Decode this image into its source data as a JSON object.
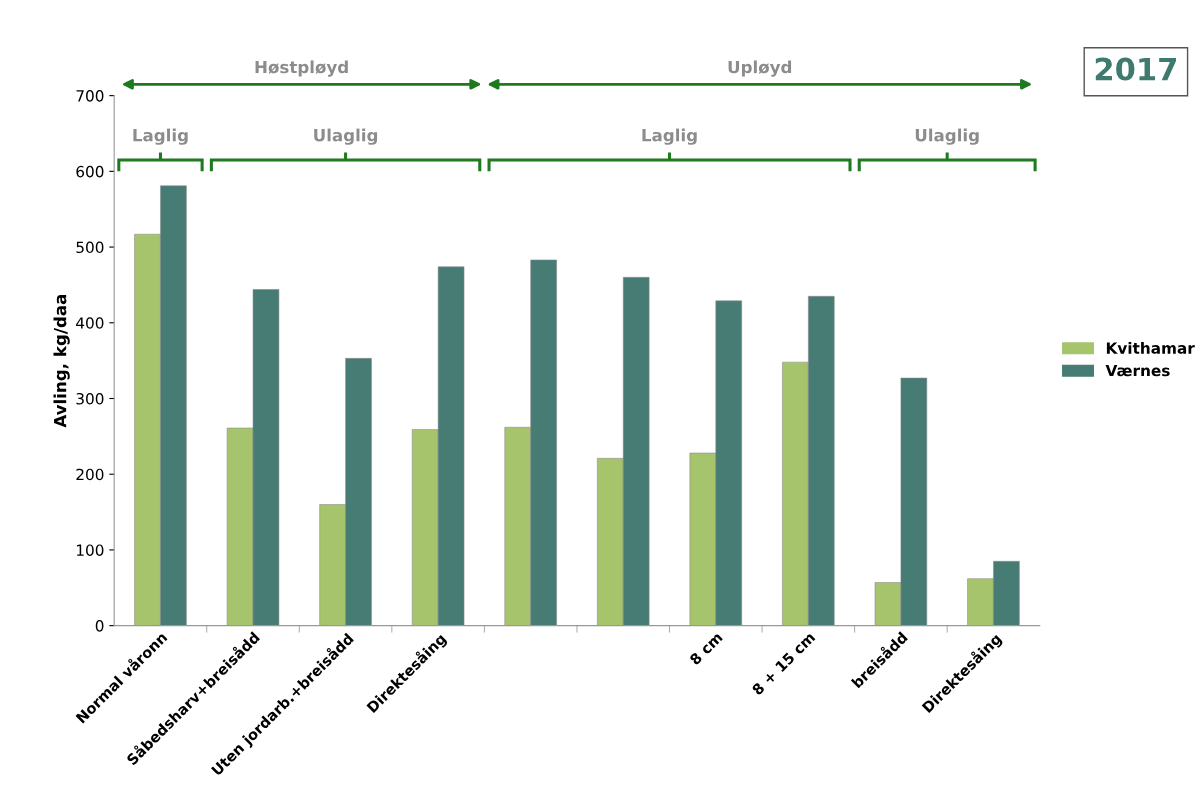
{
  "chart_data": {
    "type": "bar",
    "ylabel": "Avling, kg/daa",
    "categories": [
      "Normal våronn",
      "Såbedsharv+breisådd",
      "Uten jordarb.+breisådd",
      "Direktesåing",
      null,
      null,
      "8 cm",
      "8 + 15 cm",
      "breisådd",
      "Direktesåing"
    ],
    "series": [
      {
        "name": "Kvithamar",
        "color": "#a6c46c",
        "values": [
          517,
          261,
          160,
          259,
          262,
          221,
          228,
          348,
          57,
          62
        ]
      },
      {
        "name": "Værnes",
        "color": "#477c74",
        "values": [
          581,
          444,
          353,
          474,
          483,
          460,
          429,
          435,
          327,
          85
        ]
      }
    ],
    "ylim": [
      0,
      700
    ],
    "yticks": [
      0,
      100,
      200,
      300,
      400,
      500,
      600,
      700
    ],
    "grid": false,
    "legend": "right",
    "annotations": [
      "Høstpløyd",
      "Upløyd",
      "Laglig",
      "Ulaglig",
      "Laglig",
      "Ulaglig",
      "2017"
    ]
  }
}
